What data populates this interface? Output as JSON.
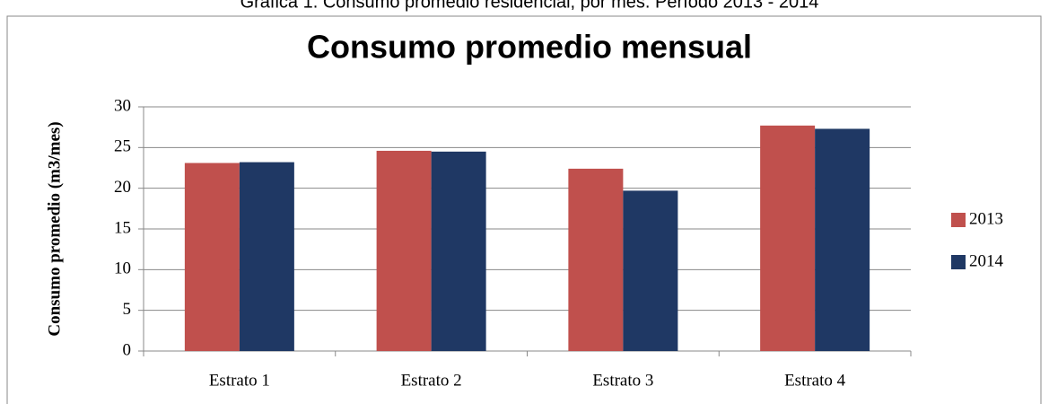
{
  "chart_data": {
    "type": "bar",
    "caption": "Gráfica 1. Consumo promedio residencial, por mes. Período 2013 - 2014",
    "title": "Consumo promedio mensual",
    "y_label": "Consumo promedio (m3/mes)",
    "categories": [
      "Estrato 1",
      "Estrato 2",
      "Estrato 3",
      "Estrato 4"
    ],
    "series": [
      {
        "name": "2013",
        "color": "#c0504d",
        "values": [
          23.1,
          24.6,
          22.4,
          27.7
        ]
      },
      {
        "name": "2014",
        "color": "#1f3864",
        "values": [
          23.2,
          24.5,
          19.7,
          27.3
        ]
      }
    ],
    "ylim": [
      0,
      30
    ],
    "yticks": [
      0,
      5,
      10,
      15,
      20,
      25,
      30
    ],
    "grid": true,
    "legend": "right"
  }
}
